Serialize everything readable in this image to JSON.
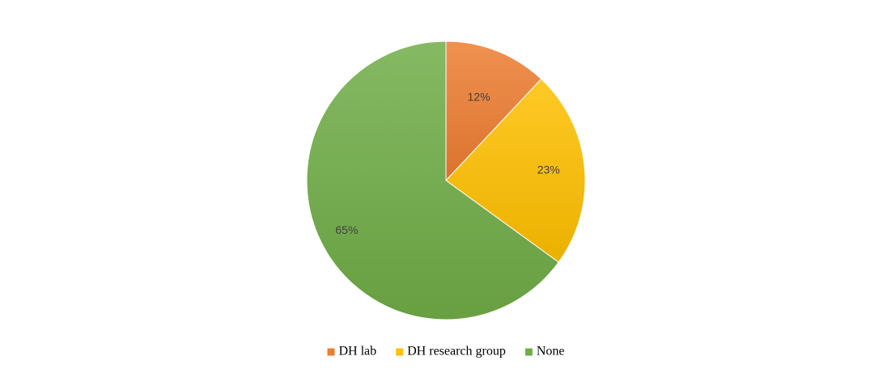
{
  "chart_data": {
    "type": "pie",
    "categories": [
      "DH lab",
      "DH research group",
      "None"
    ],
    "values": [
      12,
      23,
      65
    ],
    "labels": [
      "12%",
      "23%",
      "65%"
    ],
    "colors": [
      "#ED7D31",
      "#FFC000",
      "#70AD47"
    ],
    "legend": "bottom"
  }
}
